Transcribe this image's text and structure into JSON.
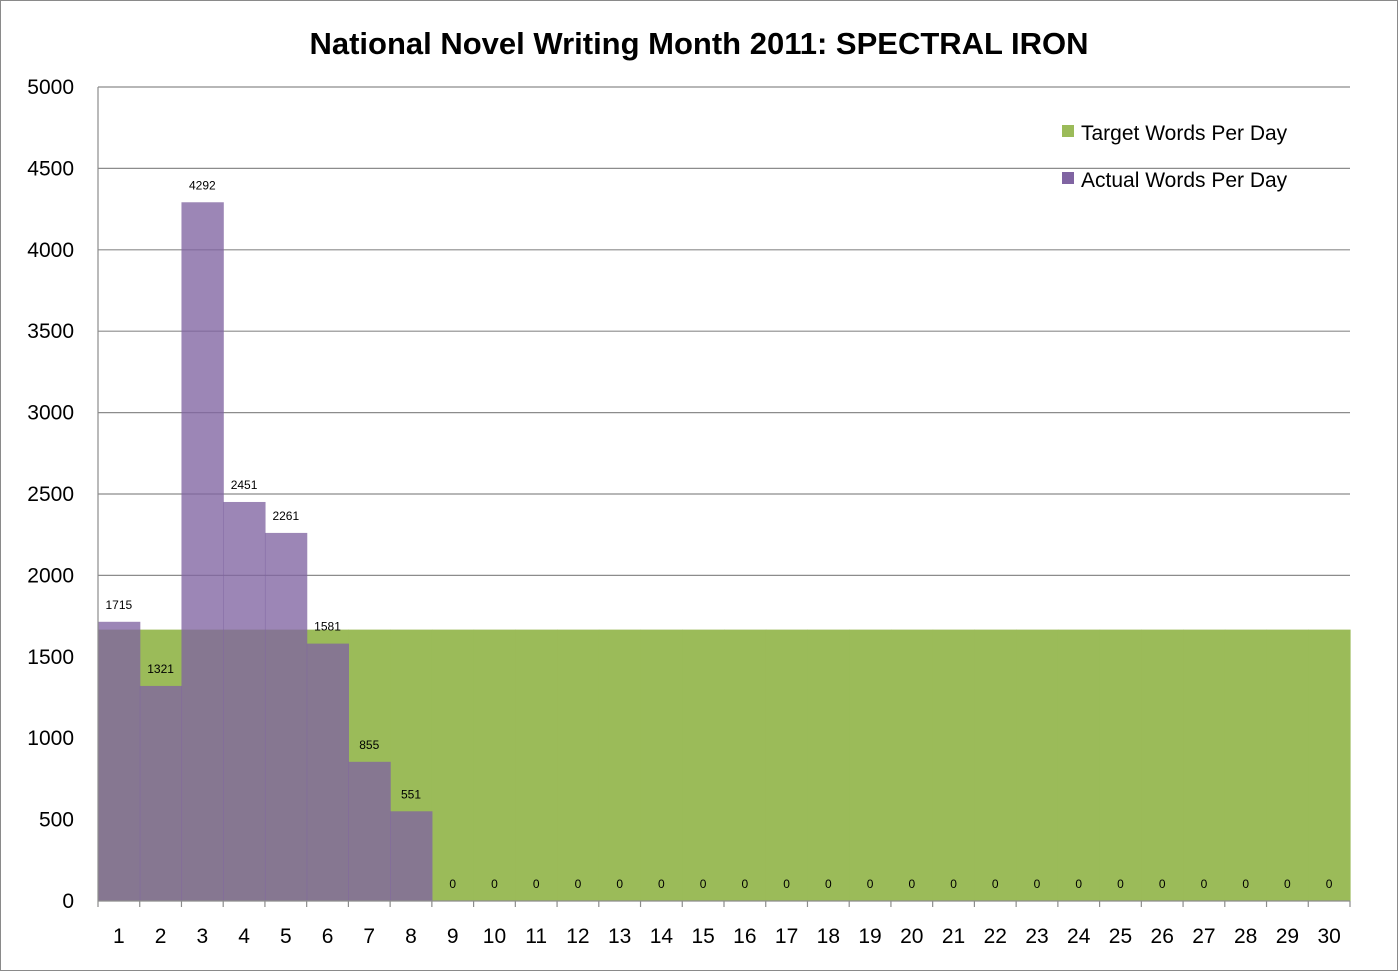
{
  "chart_data": {
    "type": "bar",
    "title": "National Novel Writing Month 2011: SPECTRAL IRON",
    "xlabel": "",
    "ylabel": "",
    "ylim": [
      0,
      5000
    ],
    "yticks": [
      0,
      500,
      1000,
      1500,
      2000,
      2500,
      3000,
      3500,
      4000,
      4500,
      5000
    ],
    "grid": "horizontal",
    "legend_position": "top-right",
    "categories": [
      "1",
      "2",
      "3",
      "4",
      "5",
      "6",
      "7",
      "8",
      "9",
      "10",
      "11",
      "12",
      "13",
      "14",
      "15",
      "16",
      "17",
      "18",
      "19",
      "20",
      "21",
      "22",
      "23",
      "24",
      "25",
      "26",
      "27",
      "28",
      "29",
      "30"
    ],
    "series": [
      {
        "name": "Target Words Per Day",
        "color": "#9BBB59",
        "values": [
          1667,
          1667,
          1667,
          1667,
          1667,
          1667,
          1667,
          1667,
          1667,
          1667,
          1667,
          1667,
          1667,
          1667,
          1667,
          1667,
          1667,
          1667,
          1667,
          1667,
          1667,
          1667,
          1667,
          1667,
          1667,
          1667,
          1667,
          1667,
          1667,
          1667
        ]
      },
      {
        "name": "Actual Words Per Day",
        "color": "#8064A2",
        "values": [
          1715,
          1321,
          4292,
          2451,
          2261,
          1581,
          855,
          551,
          0,
          0,
          0,
          0,
          0,
          0,
          0,
          0,
          0,
          0,
          0,
          0,
          0,
          0,
          0,
          0,
          0,
          0,
          0,
          0,
          0,
          0
        ],
        "data_labels": [
          "1715",
          "1321",
          "4292",
          "2451",
          "2261",
          "1581",
          "855",
          "551",
          "0",
          "0",
          "0",
          "0",
          "0",
          "0",
          "0",
          "0",
          "0",
          "0",
          "0",
          "0",
          "0",
          "0",
          "0",
          "0",
          "0",
          "0",
          "0",
          "0",
          "0",
          "0"
        ]
      }
    ]
  }
}
